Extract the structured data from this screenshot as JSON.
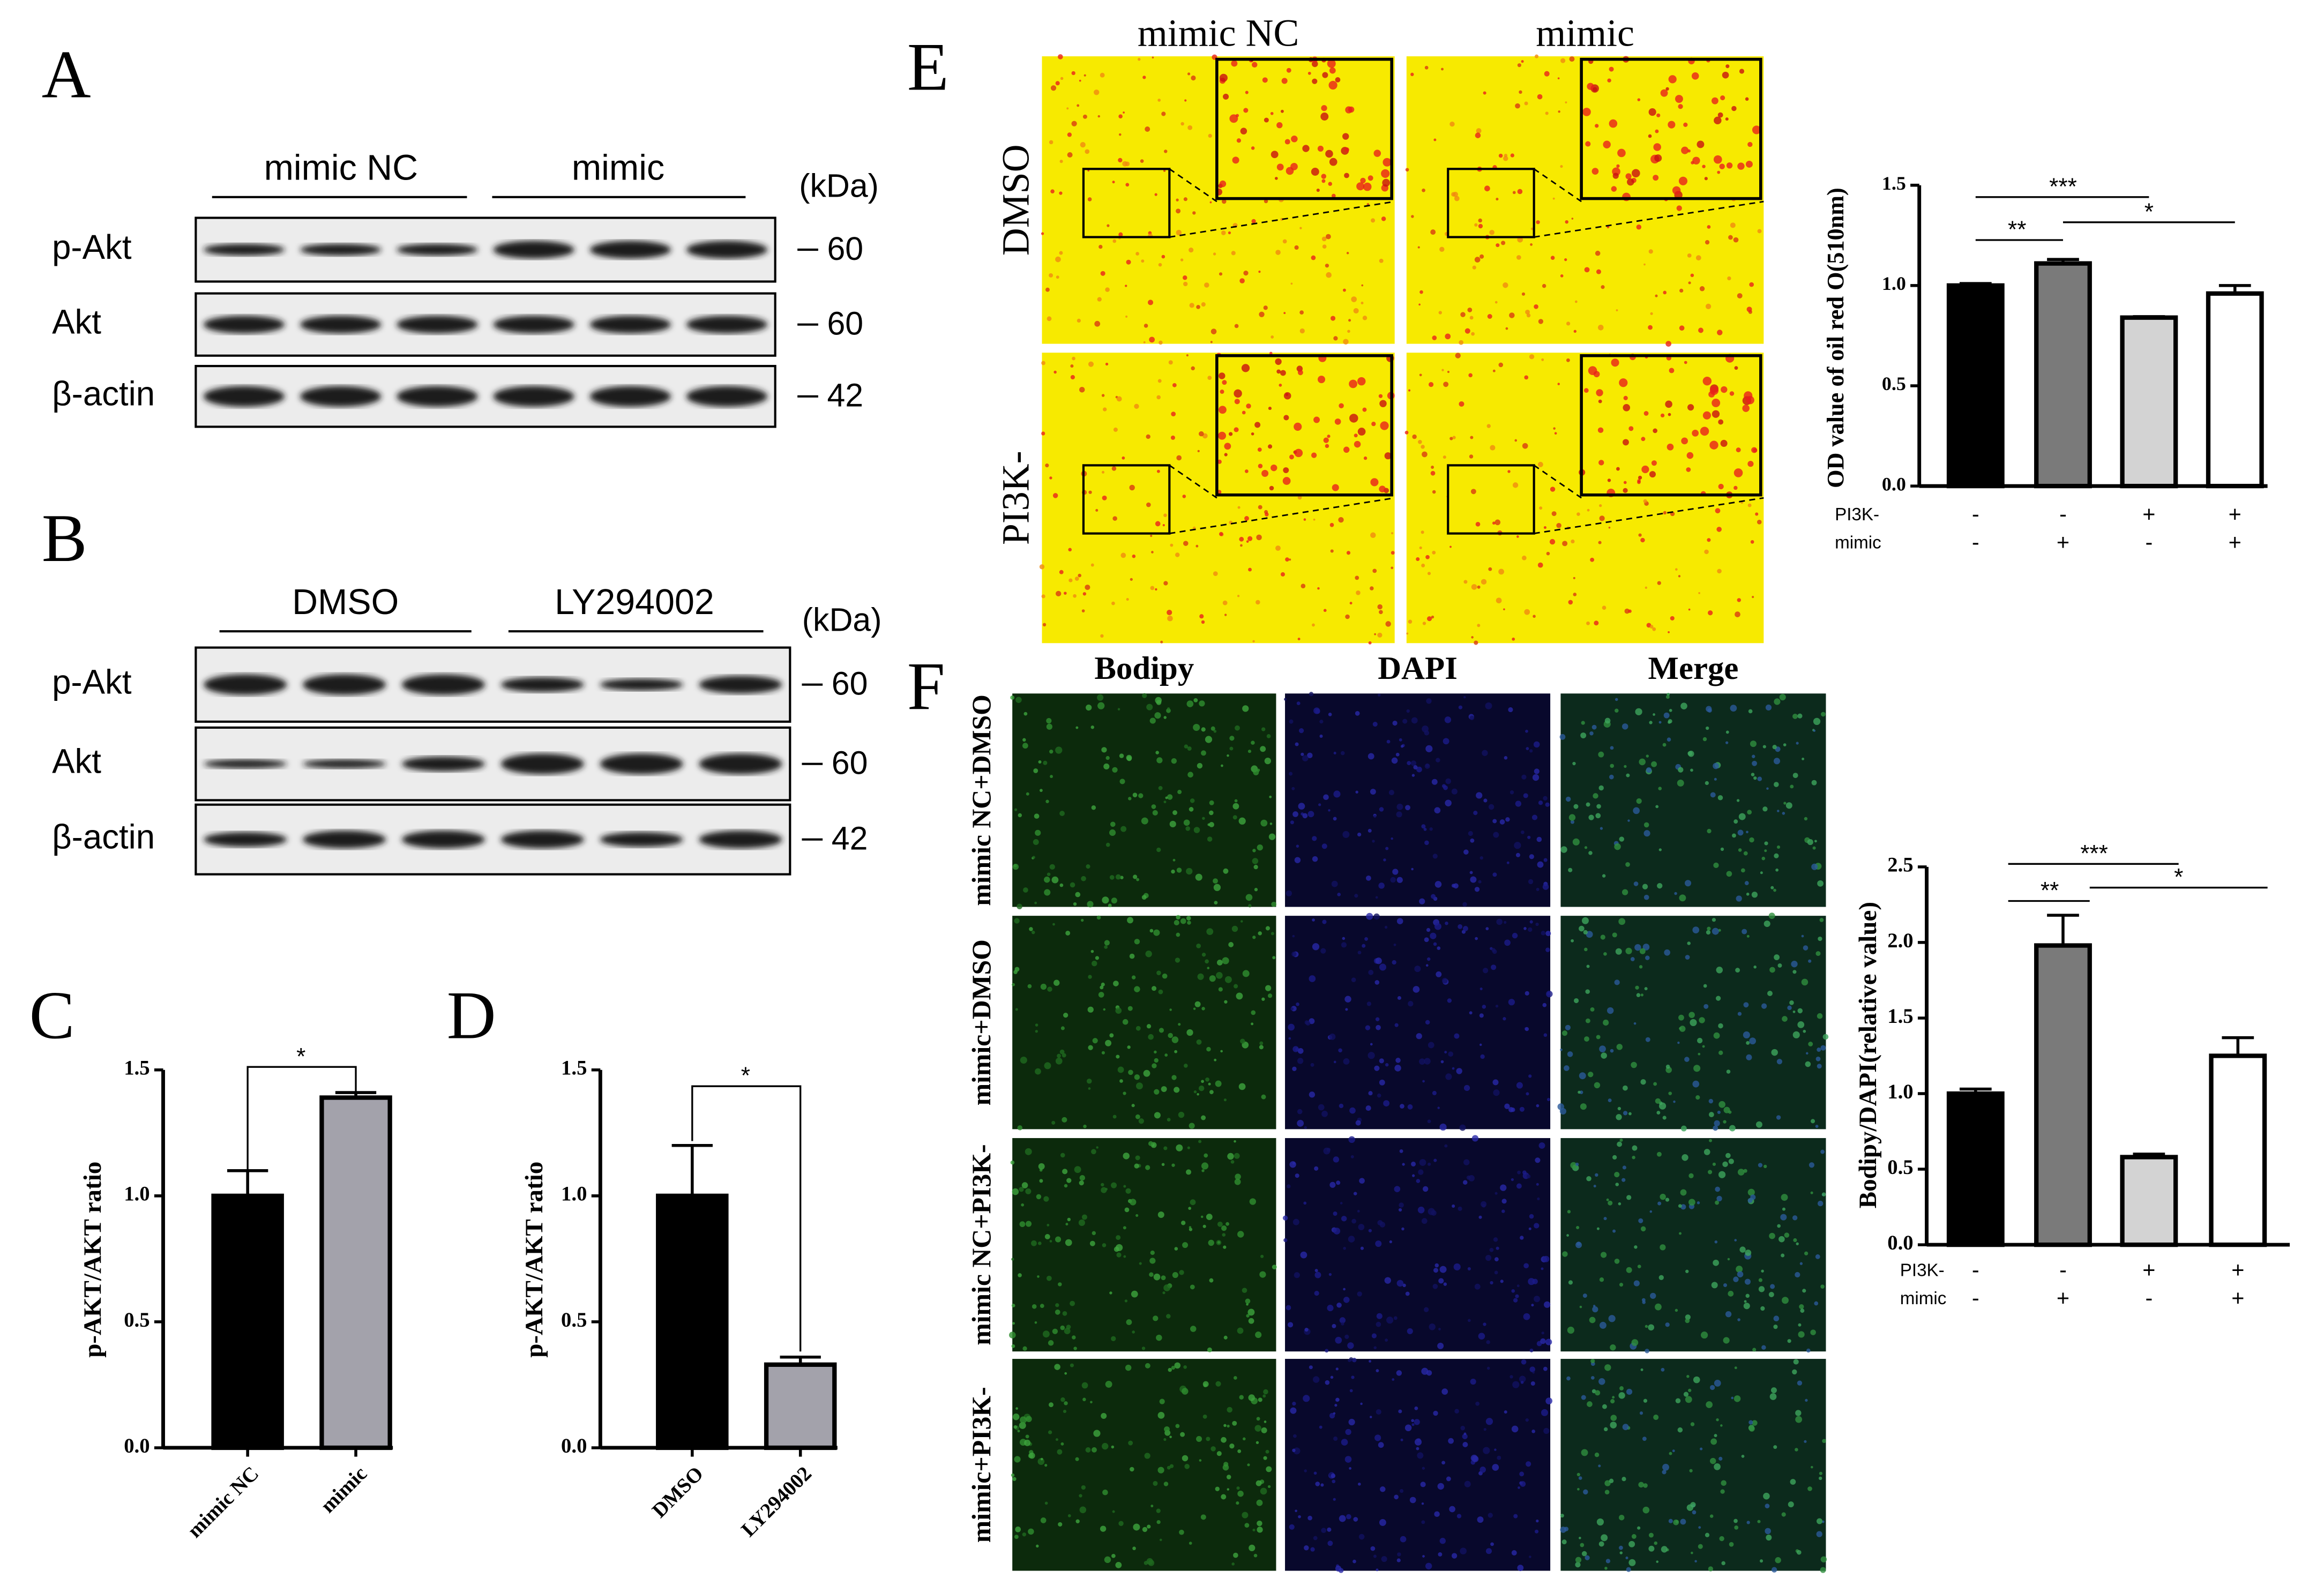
{
  "panels": {
    "A": {
      "letter": "A",
      "headers": [
        "mimic NC",
        "mimic"
      ],
      "unit": "(kDa)",
      "rows": [
        "p-Akt",
        "Akt",
        "β-actin"
      ],
      "markers": [
        "60",
        "60",
        "42"
      ]
    },
    "B": {
      "letter": "B",
      "headers": [
        "DMSO",
        "LY294002"
      ],
      "unit": "(kDa)",
      "rows": [
        "p-Akt",
        "Akt",
        "β-actin"
      ],
      "markers": [
        "60",
        "60",
        "42"
      ]
    },
    "E": {
      "letter": "E",
      "columns": [
        "mimic NC",
        "mimic"
      ],
      "rows": [
        "DMSO",
        "PI3K-"
      ]
    },
    "F": {
      "letter": "F",
      "columns": [
        "Bodipy",
        "DAPI",
        "Merge"
      ],
      "rows": [
        "mimic NC+DMSO",
        "mimic+DMSO",
        "mimic NC+PI3K-",
        "mimic+PI3K-"
      ]
    }
  },
  "chart_data": [
    {
      "type": "bar",
      "panel": "C",
      "ylabel": "p-AKT/AKT ratio",
      "categories": [
        "mimic NC",
        "mimic"
      ],
      "values": [
        1.0,
        1.39
      ],
      "errors": [
        0.1,
        0.02
      ],
      "colors": [
        "#000000",
        "#a3a2ab"
      ],
      "ylim": [
        0,
        1.5
      ],
      "yticks": [
        {
          "value": 0,
          "label": "0.0"
        },
        {
          "value": 0.5,
          "label": "0.5"
        },
        {
          "value": 1,
          "label": "1.0"
        },
        {
          "value": 1.5,
          "label": "1.5"
        }
      ],
      "annotations": [
        "*"
      ]
    },
    {
      "type": "bar",
      "panel": "D",
      "ylabel": "p-AKT/AKT ratio",
      "categories": [
        "DMSO",
        "LY294002"
      ],
      "values": [
        1.0,
        0.33
      ],
      "errors": [
        0.2,
        0.03
      ],
      "colors": [
        "#000000",
        "#a3a2ab"
      ],
      "ylim": [
        0,
        1.5
      ],
      "yticks": [
        {
          "value": 0,
          "label": "0.0"
        },
        {
          "value": 0.5,
          "label": "0.5"
        },
        {
          "value": 1,
          "label": "1.0"
        },
        {
          "value": 1.5,
          "label": "1.5"
        }
      ],
      "annotations": [
        "*"
      ]
    },
    {
      "type": "bar",
      "ylabel": "OD value of oil red O(510nm)",
      "values": [
        1.0,
        1.11,
        0.84,
        0.96
      ],
      "errors": [
        0.01,
        0.02,
        0.005,
        0.04
      ],
      "colors": [
        "#000000",
        "#7a7a7a",
        "#d3d3d3",
        "#ffffff"
      ],
      "ylim": [
        0,
        1.5
      ],
      "yticks": [
        {
          "value": 0,
          "label": "0.0"
        },
        {
          "value": 0.5,
          "label": "0.5"
        },
        {
          "value": 1,
          "label": "1.0"
        },
        {
          "value": 1.5,
          "label": "1.5"
        }
      ],
      "annotations": [
        "***",
        "**",
        "*"
      ],
      "group_rows": [
        {
          "label": "PI3K-",
          "signs": [
            "-",
            "-",
            "+",
            "+"
          ]
        },
        {
          "label": "mimic",
          "signs": [
            "-",
            "+",
            "-",
            "+"
          ]
        }
      ]
    },
    {
      "type": "bar",
      "ylabel": "Bodipy/DAPI(relative value)",
      "values": [
        1.0,
        1.98,
        0.58,
        1.25
      ],
      "errors": [
        0.03,
        0.2,
        0.02,
        0.12
      ],
      "colors": [
        "#000000",
        "#7a7a7a",
        "#d3d3d3",
        "#ffffff"
      ],
      "ylim": [
        0,
        2.5
      ],
      "yticks": [
        {
          "value": 0,
          "label": "0.0"
        },
        {
          "value": 0.5,
          "label": "0.5"
        },
        {
          "value": 1,
          "label": "1.0"
        },
        {
          "value": 1.5,
          "label": "1.5"
        },
        {
          "value": 2,
          "label": "2.0"
        },
        {
          "value": 2.5,
          "label": "2.5"
        }
      ],
      "annotations": [
        "***",
        "**",
        "*"
      ],
      "group_rows": [
        {
          "label": "PI3K-",
          "signs": [
            "-",
            "-",
            "+",
            "+"
          ]
        },
        {
          "label": "mimic",
          "signs": [
            "-",
            "+",
            "-",
            "+"
          ]
        }
      ]
    }
  ]
}
